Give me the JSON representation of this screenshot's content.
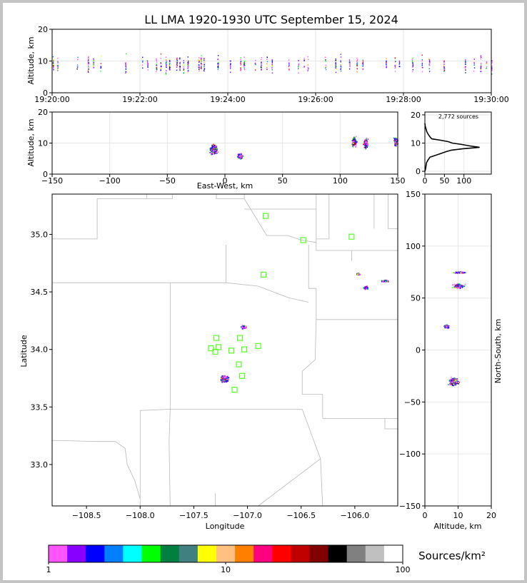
{
  "chart_data": {
    "type": "scatter",
    "title": "LL LMA 1920-1930 UTC September 15, 2024",
    "colors": [
      "#ff55ff",
      "#8800ff",
      "#0000ff",
      "#0080ff",
      "#00ffff",
      "#00ff00",
      "#008040",
      "#408080",
      "#ffff00",
      "#ffc080",
      "#ff8000",
      "#ff0080",
      "#ff0000",
      "#c00000",
      "#800000",
      "#000000",
      "#808080",
      "#c0c0c0",
      "#ffffff"
    ],
    "time_height": {
      "ylabel": "Altitude, km",
      "ylim": [
        0,
        20
      ],
      "yticks": [
        "0",
        "10",
        "20"
      ],
      "xticks": [
        "19:20:00",
        "19:22:00",
        "19:24:00",
        "19:26:00",
        "19:28:00",
        "19:30:00"
      ]
    },
    "ew_height": {
      "xlabel": "East-West, km",
      "ylabel": "Altitude, km",
      "xlim": [
        -150,
        150
      ],
      "ylim": [
        0,
        20
      ],
      "xticks": [
        "−150",
        "−100",
        "−50",
        "0",
        "50",
        "100",
        "150"
      ],
      "yticks": [
        "0",
        "10",
        "20"
      ]
    },
    "histogram": {
      "annotation": "2,772 sources",
      "xticks": [
        "0",
        "50",
        "100"
      ],
      "yticks": [
        "0",
        "10",
        "20"
      ],
      "profile": [
        [
          0,
          0
        ],
        [
          1,
          2
        ],
        [
          2,
          3
        ],
        [
          3,
          4
        ],
        [
          4,
          8
        ],
        [
          5,
          13
        ],
        [
          6,
          35
        ],
        [
          7,
          55
        ],
        [
          7.5,
          68
        ],
        [
          8,
          98
        ],
        [
          8.5,
          140
        ],
        [
          9,
          115
        ],
        [
          9.5,
          95
        ],
        [
          10,
          70
        ],
        [
          10.5,
          60
        ],
        [
          11,
          40
        ],
        [
          11.5,
          18
        ],
        [
          12,
          14
        ],
        [
          13,
          9
        ],
        [
          14,
          5
        ],
        [
          15,
          3
        ],
        [
          16,
          1
        ],
        [
          17,
          0
        ]
      ]
    },
    "plan_view": {
      "xlabel": "Longitude",
      "ylabel": "Latitude",
      "xlim": [
        -108.82,
        -105.6
      ],
      "ylim": [
        32.64,
        35.35
      ],
      "xticks": [
        "−108.5",
        "−108.0",
        "−107.5",
        "−107.0",
        "−106.5",
        "−106.0"
      ],
      "yticks": [
        "33.0",
        "33.5",
        "34.0",
        "34.5",
        "35.0"
      ],
      "stations": [
        [
          -106.83,
          35.16
        ],
        [
          -106.48,
          34.95
        ],
        [
          -106.03,
          34.98
        ],
        [
          -106.85,
          34.65
        ],
        [
          -107.29,
          34.1
        ],
        [
          -107.07,
          34.1
        ],
        [
          -106.9,
          34.03
        ],
        [
          -107.34,
          34.01
        ],
        [
          -107.27,
          34.02
        ],
        [
          -107.15,
          33.99
        ],
        [
          -107.3,
          33.98
        ],
        [
          -107.03,
          34.0
        ],
        [
          -107.08,
          33.87
        ],
        [
          -107.05,
          33.77
        ],
        [
          -107.12,
          33.65
        ]
      ],
      "clusters": [
        {
          "name": "south",
          "lon": -107.22,
          "lat": 33.75,
          "sx": 0.05,
          "sy": 0.04,
          "n": 240
        },
        {
          "name": "middle",
          "lon": -107.04,
          "lat": 34.2,
          "sx": 0.04,
          "sy": 0.02,
          "n": 70
        },
        {
          "name": "ne-a",
          "lon": -105.97,
          "lat": 34.66,
          "sx": 0.03,
          "sy": 0.012,
          "n": 50
        },
        {
          "name": "ne-b",
          "lon": -105.9,
          "lat": 34.54,
          "sx": 0.03,
          "sy": 0.018,
          "n": 60
        },
        {
          "name": "east-edge",
          "lon": -105.72,
          "lat": 34.6,
          "sx": 0.05,
          "sy": 0.01,
          "n": 40
        }
      ]
    },
    "ns_height": {
      "xlabel": "Altitude, km",
      "ylabel": "North-South, km",
      "xlim": [
        0,
        20
      ],
      "ylim": [
        -150,
        150
      ],
      "xticks": [
        "0",
        "10",
        "20"
      ],
      "yticks": [
        "−150",
        "−100",
        "−50",
        "0",
        "50",
        "100",
        "150"
      ]
    },
    "colorbar": {
      "label": "Sources/km²",
      "min": 1,
      "max": 100,
      "ticks": [
        "1",
        "10",
        "100"
      ]
    }
  }
}
